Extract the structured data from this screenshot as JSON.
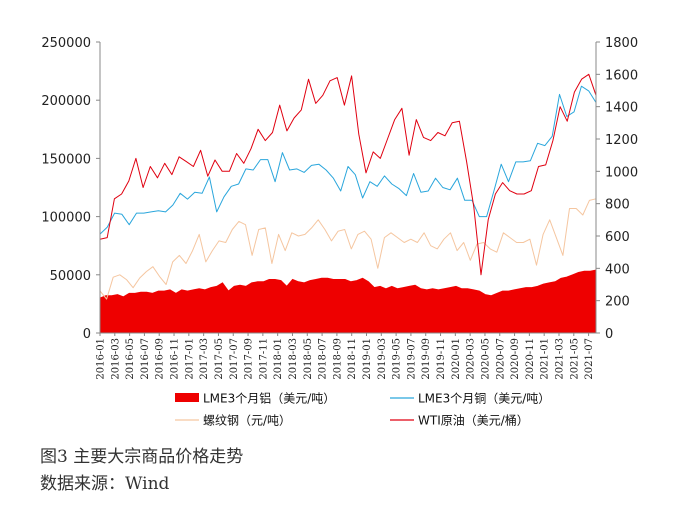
{
  "caption": {
    "title": "图3  主要大宗商品价格走势",
    "source": "数据来源：Wind"
  },
  "chart_data": {
    "type": "line",
    "title": "",
    "xlabel": "",
    "ylabel_left": "",
    "ylabel_right": "",
    "y_left_lim": [
      0,
      250000
    ],
    "y_left_ticks": [
      "0",
      "50000",
      "100000",
      "150000",
      "200000",
      "250000"
    ],
    "y_right_lim": [
      0,
      1800
    ],
    "y_right_ticks": [
      "0",
      "200",
      "400",
      "600",
      "800",
      "1000",
      "1200",
      "1400",
      "1600",
      "1800"
    ],
    "x_tick_labels": [
      "2016-01",
      "2016-03",
      "2016-05",
      "2016-07",
      "2016-09",
      "2016-11",
      "2017-01",
      "2017-03",
      "2017-05",
      "2017-07",
      "2017-09",
      "2017-11",
      "2018-01",
      "2018-03",
      "2018-05",
      "2018-07",
      "2018-09",
      "2018-11",
      "2019-01",
      "2019-03",
      "2019-05",
      "2019-07",
      "2019-09",
      "2019-11",
      "2020-01",
      "2020-03",
      "2020-05",
      "2020-07",
      "2020-09",
      "2020-11",
      "2021-01",
      "2021-03",
      "2021-05",
      "2021-07"
    ],
    "x_start": "2016-01",
    "x_end": "2021-08",
    "legend": {
      "placement": "bottom"
    },
    "series": [
      {
        "name": "LME3个月铝（美元/吨）",
        "axis": "left",
        "style": "area",
        "color": "#ee0000",
        "values": [
          30000,
          32000,
          32000,
          33000,
          31000,
          34000,
          34000,
          35000,
          35000,
          34000,
          36000,
          36000,
          37000,
          34000,
          37000,
          36000,
          37000,
          38000,
          37000,
          39000,
          40000,
          43000,
          36000,
          40000,
          41000,
          40000,
          43000,
          44000,
          44000,
          46000,
          46000,
          45000,
          40000,
          46000,
          44000,
          43000,
          45000,
          46000,
          47000,
          47000,
          46000,
          46000,
          46000,
          44000,
          45000,
          47000,
          44000,
          39000,
          40000,
          38000,
          40000,
          38000,
          39000,
          40000,
          41000,
          38000,
          37000,
          38000,
          37000,
          38000,
          39000,
          40000,
          38000,
          38000,
          37000,
          36000,
          33000,
          32000,
          34000,
          36000,
          36000,
          37000,
          38000,
          39000,
          39000,
          40000,
          42000,
          43000,
          44000,
          47000,
          48000,
          50000,
          52000,
          53000,
          53000,
          54000
        ]
      },
      {
        "name": "LME3个月铜（美元/吨）",
        "axis": "left",
        "style": "line",
        "color": "#2aa6dc",
        "values": [
          85000,
          91000,
          103000,
          102000,
          93000,
          103000,
          103000,
          104000,
          105000,
          104000,
          110000,
          120000,
          115000,
          121000,
          120000,
          134000,
          104000,
          117000,
          126000,
          128000,
          141000,
          140000,
          149000,
          149000,
          130000,
          155000,
          140000,
          141000,
          138000,
          144000,
          145000,
          140000,
          133000,
          122000,
          143000,
          136000,
          116000,
          130000,
          126000,
          135000,
          128000,
          124000,
          118000,
          137000,
          121000,
          122000,
          133000,
          125000,
          123000,
          133000,
          114000,
          114000,
          100000,
          100000,
          122000,
          145000,
          130000,
          147000,
          147000,
          148000,
          163000,
          161000,
          169000,
          205000,
          186000,
          190000,
          212000,
          208000,
          198000
        ]
      },
      {
        "name": "螺纹钢（元/吨）",
        "axis": "right",
        "style": "line",
        "color": "#f5c6a0",
        "values": [
          260,
          210,
          345,
          360,
          330,
          280,
          340,
          380,
          410,
          350,
          300,
          440,
          480,
          430,
          510,
          610,
          440,
          510,
          570,
          560,
          640,
          690,
          670,
          480,
          640,
          650,
          430,
          610,
          510,
          620,
          600,
          610,
          650,
          700,
          640,
          570,
          630,
          640,
          520,
          610,
          630,
          580,
          400,
          590,
          620,
          590,
          560,
          580,
          560,
          620,
          540,
          520,
          580,
          620,
          510,
          560,
          450,
          550,
          560,
          520,
          500,
          620,
          590,
          560,
          560,
          580,
          420,
          610,
          700,
          590,
          480,
          770,
          770,
          730,
          820,
          830
        ]
      },
      {
        "name": "WTI原油（美元/桶）",
        "axis": "right",
        "style": "line",
        "color": "#e00010",
        "values": [
          580,
          590,
          830,
          860,
          940,
          1080,
          900,
          1030,
          960,
          1050,
          980,
          1090,
          1060,
          1030,
          1130,
          970,
          1070,
          1000,
          1000,
          1110,
          1050,
          1140,
          1260,
          1190,
          1240,
          1410,
          1250,
          1330,
          1380,
          1570,
          1420,
          1470,
          1560,
          1580,
          1410,
          1590,
          1230,
          990,
          1120,
          1080,
          1200,
          1320,
          1390,
          1100,
          1320,
          1210,
          1190,
          1240,
          1220,
          1300,
          1310,
          1060,
          780,
          360,
          700,
          860,
          930,
          880,
          860,
          860,
          880,
          1030,
          1040,
          1190,
          1400,
          1310,
          1490,
          1570,
          1600,
          1470
        ]
      }
    ]
  }
}
